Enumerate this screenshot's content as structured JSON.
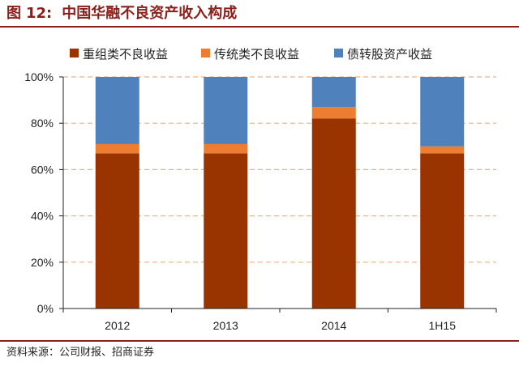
{
  "figure": {
    "label": "图",
    "number": "12:",
    "title": "中国华融不良资产收入构成",
    "source": "资料来源：公司财报、招商证券"
  },
  "chart_data": {
    "type": "bar",
    "stacked": true,
    "categories": [
      "2012",
      "2013",
      "2014",
      "1H15"
    ],
    "series": [
      {
        "name": "重组类不良收益",
        "color": "#993300",
        "values": [
          67,
          67,
          82,
          67
        ]
      },
      {
        "name": "传统类不良收益",
        "color": "#ed7d31",
        "values": [
          4,
          4,
          5,
          3
        ]
      },
      {
        "name": "债转股资产收益",
        "color": "#4f81bd",
        "values": [
          29,
          29,
          13,
          30
        ]
      }
    ],
    "y_ticks": [
      "0%",
      "20%",
      "40%",
      "60%",
      "80%",
      "100%"
    ],
    "ylim": [
      0,
      100
    ],
    "y_unit": "%",
    "grid": "horizontal dashed",
    "gridline_color": "#f4b183",
    "legend_position": "top"
  }
}
